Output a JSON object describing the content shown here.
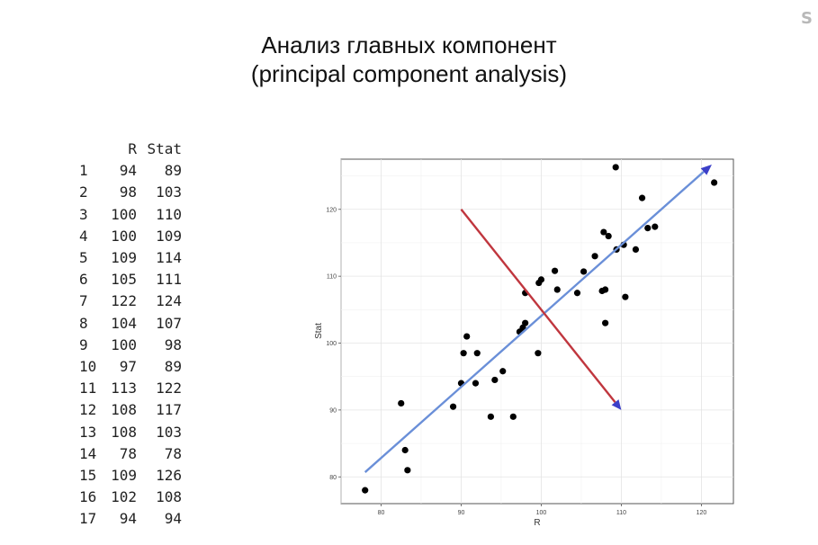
{
  "header": {
    "corner_text": "S",
    "title_line1": "Анализ главных компонент",
    "title_line2": "(principal component analysis)"
  },
  "table": {
    "columns": [
      "R",
      "Stat"
    ],
    "rows": [
      {
        "id": "1",
        "R": "94",
        "Stat": "89"
      },
      {
        "id": "2",
        "R": "98",
        "Stat": "103"
      },
      {
        "id": "3",
        "R": "100",
        "Stat": "110"
      },
      {
        "id": "4",
        "R": "100",
        "Stat": "109"
      },
      {
        "id": "5",
        "R": "109",
        "Stat": "114"
      },
      {
        "id": "6",
        "R": "105",
        "Stat": "111"
      },
      {
        "id": "7",
        "R": "122",
        "Stat": "124"
      },
      {
        "id": "8",
        "R": "104",
        "Stat": "107"
      },
      {
        "id": "9",
        "R": "100",
        "Stat": "98"
      },
      {
        "id": "10",
        "R": "97",
        "Stat": "89"
      },
      {
        "id": "11",
        "R": "113",
        "Stat": "122"
      },
      {
        "id": "12",
        "R": "108",
        "Stat": "117"
      },
      {
        "id": "13",
        "R": "108",
        "Stat": "103"
      },
      {
        "id": "14",
        "R": "78",
        "Stat": "78"
      },
      {
        "id": "15",
        "R": "109",
        "Stat": "126"
      },
      {
        "id": "16",
        "R": "102",
        "Stat": "108"
      },
      {
        "id": "17",
        "R": "94",
        "Stat": "94"
      }
    ]
  },
  "chart_data": {
    "type": "scatter",
    "title": "",
    "xlabel": "R",
    "ylabel": "Stat",
    "xlim": [
      75,
      124
    ],
    "ylim": [
      76,
      127.5
    ],
    "xticks": [
      80,
      90,
      100,
      110,
      120
    ],
    "yticks": [
      80,
      90,
      100,
      110,
      120
    ],
    "grid": true,
    "colors": {
      "point": "#000000",
      "pc1": "#6a8fd8",
      "pc2": "#c0363e",
      "arrowhead": "#3b3fc8"
    },
    "points": [
      [
        78,
        78
      ],
      [
        82.5,
        91
      ],
      [
        83,
        84
      ],
      [
        83.3,
        81
      ],
      [
        89,
        90.5
      ],
      [
        90,
        94
      ],
      [
        90.3,
        98.5
      ],
      [
        90.7,
        101
      ],
      [
        91.8,
        94
      ],
      [
        92,
        98.5
      ],
      [
        93.7,
        89
      ],
      [
        94.2,
        94.5
      ],
      [
        95.2,
        95.8
      ],
      [
        96.5,
        89
      ],
      [
        97.3,
        101.7
      ],
      [
        97.7,
        102.3
      ],
      [
        98,
        107.5
      ],
      [
        98,
        103
      ],
      [
        99.6,
        98.5
      ],
      [
        99.7,
        109
      ],
      [
        100,
        109.5
      ],
      [
        101.7,
        110.8
      ],
      [
        102,
        108
      ],
      [
        104.5,
        107.5
      ],
      [
        105.3,
        110.7
      ],
      [
        106.7,
        113
      ],
      [
        107.6,
        107.8
      ],
      [
        107.8,
        116.6
      ],
      [
        108,
        108
      ],
      [
        108,
        103
      ],
      [
        108.4,
        116
      ],
      [
        109.3,
        126.3
      ],
      [
        109.4,
        114
      ],
      [
        110.3,
        114.7
      ],
      [
        110.5,
        106.9
      ],
      [
        111.8,
        114
      ],
      [
        112.6,
        121.7
      ],
      [
        113.3,
        117.2
      ],
      [
        114.2,
        117.4
      ],
      [
        121.6,
        124
      ]
    ],
    "pc1_arrow": {
      "from": [
        78,
        80.7
      ],
      "to": [
        121.3,
        126.7
      ]
    },
    "pc2_arrow": {
      "from": [
        90,
        120
      ],
      "to": [
        110,
        90
      ]
    }
  }
}
